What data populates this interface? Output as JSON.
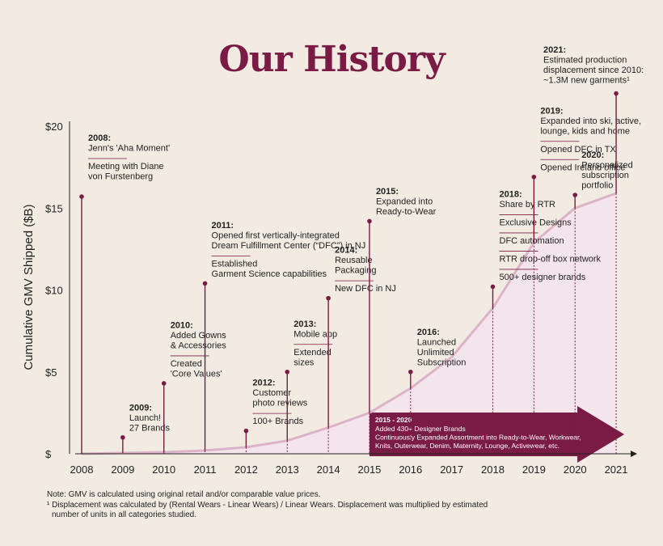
{
  "colors": {
    "background": "#f1ebe2",
    "accent": "#7a1b45",
    "curve": "#dcb3c8",
    "area": "#f4e4ec"
  },
  "title": "Our History",
  "chart_data": {
    "type": "area",
    "ylabel": "Cumulative GMV Shipped ($B)",
    "xlabel": "",
    "x": [
      "2008",
      "2009",
      "2010",
      "2011",
      "2012",
      "2013",
      "2014",
      "2015",
      "2016",
      "2017",
      "2018",
      "2019",
      "2020",
      "2021"
    ],
    "ylim": [
      0,
      20
    ],
    "yticks": [
      {
        "value": 0,
        "label": "$"
      },
      {
        "value": 5,
        "label": "$5"
      },
      {
        "value": 10,
        "label": "$10"
      },
      {
        "value": 15,
        "label": "$15"
      },
      {
        "value": 20,
        "label": "$20"
      }
    ],
    "series": [
      {
        "values": [
          0,
          0.05,
          0.1,
          0.2,
          0.4,
          0.8,
          1.6,
          2.5,
          4.0,
          5.9,
          8.9,
          12.9,
          15.0,
          15.9
        ]
      }
    ],
    "grid": false,
    "milestones": [
      {
        "year": "2008",
        "value": 15.7,
        "lines": [
          {
            "text": "2008:",
            "bold": true
          },
          {
            "text": "Jenn's 'Aha Moment'"
          },
          {
            "divider": true
          },
          {
            "text": "Meeting with Diane"
          },
          {
            "text": "von Furstenberg"
          }
        ]
      },
      {
        "year": "2009",
        "value": 1.0,
        "lines": [
          {
            "text": "2009:",
            "bold": true
          },
          {
            "text": "Launch!"
          },
          {
            "text": "27 Brands"
          }
        ]
      },
      {
        "year": "2010",
        "value": 4.3,
        "lines": [
          {
            "text": "2010:",
            "bold": true
          },
          {
            "text": "Added Gowns"
          },
          {
            "text": "& Accessories"
          },
          {
            "divider": true
          },
          {
            "text": "Created"
          },
          {
            "text": "'Core Values'"
          }
        ]
      },
      {
        "year": "2011",
        "value": 10.4,
        "lines": [
          {
            "text": "2011:",
            "bold": true
          },
          {
            "text": "Opened first vertically-integrated"
          },
          {
            "text": "Dream Fulfillment Center (“DFC”) in NJ"
          },
          {
            "divider": true
          },
          {
            "text": "Established"
          },
          {
            "text": "Garment Science capabilities"
          }
        ]
      },
      {
        "year": "2012",
        "value": 1.4,
        "lines": [
          {
            "text": "2012:",
            "bold": true
          },
          {
            "text": "Customer"
          },
          {
            "text": "photo reviews"
          },
          {
            "divider": true
          },
          {
            "text": "100+ Brands"
          }
        ]
      },
      {
        "year": "2013",
        "value": 5.0,
        "lines": [
          {
            "text": "2013:",
            "bold": true
          },
          {
            "text": "Mobile app"
          },
          {
            "divider": true
          },
          {
            "text": "Extended"
          },
          {
            "text": "sizes"
          }
        ]
      },
      {
        "year": "2014",
        "value": 9.5,
        "lines": [
          {
            "text": "2014:",
            "bold": true
          },
          {
            "text": "Reusable"
          },
          {
            "text": "Packaging"
          },
          {
            "divider": true
          },
          {
            "text": "New DFC in NJ"
          }
        ]
      },
      {
        "year": "2015",
        "value": 14.2,
        "lines": [
          {
            "text": "2015:",
            "bold": true
          },
          {
            "text": "Expanded into"
          },
          {
            "text": "Ready-to-Wear"
          }
        ]
      },
      {
        "year": "2016",
        "value": 5.0,
        "lines": [
          {
            "text": "2016:",
            "bold": true
          },
          {
            "text": "Launched"
          },
          {
            "text": "Unlimited"
          },
          {
            "text": "Subscription"
          }
        ]
      },
      {
        "year": "2018",
        "value": 10.2,
        "lines": [
          {
            "text": "2018:",
            "bold": true
          },
          {
            "text": "Share by RTR"
          },
          {
            "divider": true
          },
          {
            "text": "Exclusive Designs"
          },
          {
            "divider": true
          },
          {
            "text": "DFC automation"
          },
          {
            "divider": true
          },
          {
            "text": "RTR drop-off box network"
          },
          {
            "divider": true
          },
          {
            "text": "500+ designer brands"
          }
        ]
      },
      {
        "year": "2019",
        "value": 16.9,
        "lines": [
          {
            "text": "2019:",
            "bold": true
          },
          {
            "text": "Expanded into ski, active,"
          },
          {
            "text": "lounge, kids and home"
          },
          {
            "divider": true
          },
          {
            "text": "Opened DFC in TX"
          },
          {
            "divider": true
          },
          {
            "text": "Opened Ireland office"
          }
        ]
      },
      {
        "year": "2020",
        "value": 15.8,
        "lines": [
          {
            "text": "2020:",
            "bold": true
          },
          {
            "text": "Personalized"
          },
          {
            "text": "subscription"
          },
          {
            "text": "portfolio"
          }
        ]
      },
      {
        "year": "2021",
        "value": 22.0,
        "lines": [
          {
            "text": "2021:",
            "bold": true
          },
          {
            "text": "Estimated production"
          },
          {
            "text": "displacement since 2010:"
          },
          {
            "text": "~1.3M new garments¹"
          }
        ]
      }
    ],
    "band": {
      "from": "2015",
      "to": "2021",
      "title": "2015 - 2020",
      "lines": [
        "Added 430+ Designer Brands",
        "Continuously Expanded Assortment into Ready-to-Wear, Workwear,",
        "Knits, Outerwear, Denim, Maternity, Lounge, Activewear, etc."
      ]
    }
  },
  "notes": [
    "Note: GMV is calculated using original retail and/or comparable value prices.",
    "¹ Displacement was calculated by (Rental Wears - Linear Wears) / Linear Wears. Displacement was multiplied by estimated",
    "  number of units in all categories studied."
  ]
}
